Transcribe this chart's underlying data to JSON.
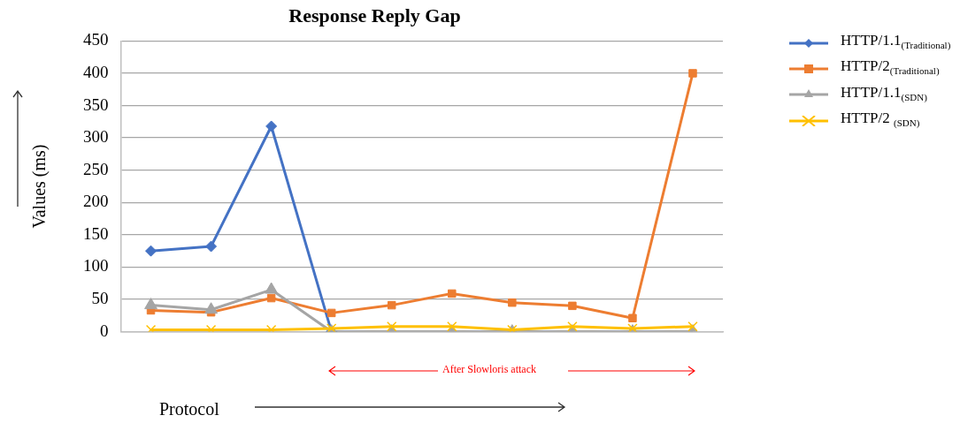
{
  "chart_data": {
    "type": "line",
    "title": "Response Reply Gap",
    "xlabel": "Protocol",
    "ylabel": "Values (ms)",
    "categories": [
      null,
      null,
      null,
      null,
      null,
      null,
      null,
      null,
      null,
      null
    ],
    "series": [
      {
        "name": "HTTP/1.1$_{(Traditional)}$",
        "color": "#4472c4",
        "marker": "diamond",
        "values": [
          125,
          132,
          318,
          0,
          null,
          null,
          null,
          null,
          null,
          null
        ]
      },
      {
        "name": "HTTP/2$_{(Traditional)}$",
        "color": "#ed7d31",
        "marker": "square",
        "values": [
          33,
          30,
          52,
          29,
          41,
          59,
          45,
          40,
          21,
          400
        ]
      },
      {
        "name": "HTTP/1.1$_{(SDN)}$",
        "color": "#a5a5a5",
        "marker": "triangle",
        "values": [
          41,
          34,
          65,
          0,
          0,
          0,
          0,
          0,
          0,
          0
        ]
      },
      {
        "name": "HTTP/2 $_{(SDN)}$",
        "color": "#ffc000",
        "marker": "cross",
        "values": [
          3,
          3,
          3,
          5,
          8,
          8,
          3,
          8,
          5,
          8
        ]
      }
    ],
    "ylim": [
      0,
      450
    ],
    "yticks": [
      0,
      50,
      100,
      150,
      200,
      250,
      300,
      350,
      400,
      450
    ],
    "grid": "y",
    "legend": "top right",
    "line_style": "solid",
    "annotations": [
      "After Slowloris attack"
    ]
  }
}
